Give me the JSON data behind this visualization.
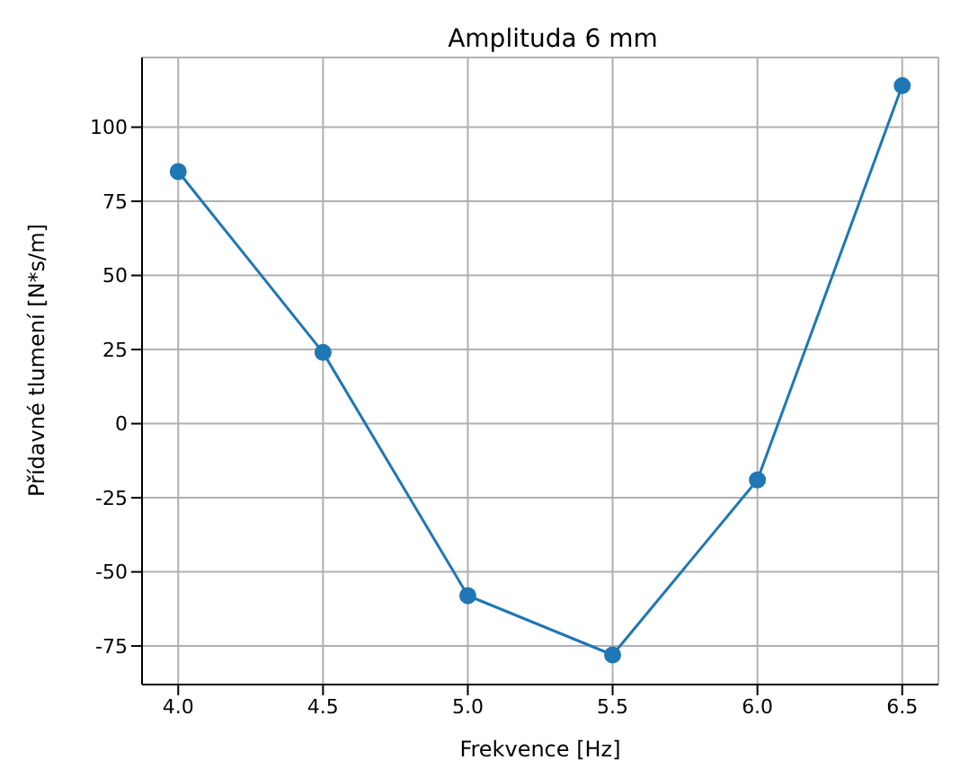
{
  "chart_data": {
    "type": "line",
    "title": "Amplituda 6 mm",
    "xlabel": "Frekvence [Hz]",
    "ylabel": "Přídavné tlumení [N*s/m]",
    "x": [
      4.0,
      4.5,
      5.0,
      5.5,
      6.0,
      6.5
    ],
    "series": [
      {
        "color": "#1f77b4",
        "values": [
          85,
          24,
          -58,
          -78,
          -19,
          114
        ]
      }
    ],
    "xlim": [
      3.875,
      6.625
    ],
    "xticks": [
      {
        "value": 4.0,
        "label": "4.0"
      },
      {
        "value": 4.5,
        "label": "4.5"
      },
      {
        "value": 5.0,
        "label": "5.0"
      },
      {
        "value": 5.5,
        "label": "5.5"
      },
      {
        "value": 6.0,
        "label": "6.0"
      },
      {
        "value": 6.5,
        "label": "6.5"
      }
    ],
    "ylim": [
      -88,
      123.5
    ],
    "yticks": [
      -75,
      -50,
      -25,
      0,
      25,
      50,
      75,
      100
    ],
    "grid": true,
    "marker": "circle",
    "line_style": "solid"
  }
}
